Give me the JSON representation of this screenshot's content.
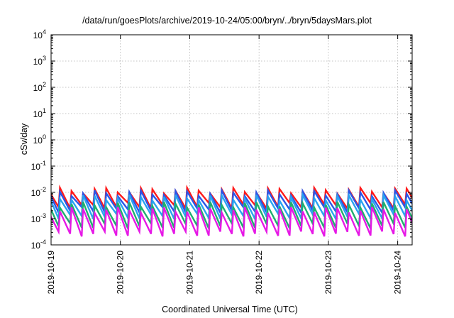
{
  "chart_data": {
    "type": "line",
    "title": "/data/run/goesPlots/archive/2019-10-24/05:00/bryn/../bryn/5daysMars.plot",
    "xlabel": "Coordinated Universal Time (UTC)",
    "ylabel": "cSv/day",
    "x_ticks": [
      "2019-10-19",
      "2019-10-20",
      "2019-10-21",
      "2019-10-22",
      "2019-10-23",
      "2019-10-24"
    ],
    "xlim": [
      "2019-10-19",
      "2019-10-24 05:00"
    ],
    "ylim": [
      0.0001,
      10000
    ],
    "yscale": "log",
    "y_ticks": [
      {
        "base": "10",
        "exp": "-4"
      },
      {
        "base": "10",
        "exp": "-3"
      },
      {
        "base": "10",
        "exp": "-2"
      },
      {
        "base": "10",
        "exp": "-1"
      },
      {
        "base": "10",
        "exp": "0"
      },
      {
        "base": "10",
        "exp": "1"
      },
      {
        "base": "10",
        "exp": "2"
      },
      {
        "base": "10",
        "exp": "3"
      },
      {
        "base": "10",
        "exp": "4"
      }
    ],
    "grid": true,
    "sawtooth_period_hours": 4,
    "series": [
      {
        "color": "#ff1a1a",
        "peak": 0.012,
        "trough": 0.004
      },
      {
        "color": "#2a56e8",
        "peak": 0.0095,
        "trough": 0.0028
      },
      {
        "color": "#29a3f0",
        "peak": 0.0065,
        "trough": 0.0016
      },
      {
        "color": "#1fae6e",
        "peak": 0.0035,
        "trough": 0.0007
      },
      {
        "color": "#e619e6",
        "peak": 0.0022,
        "trough": 0.00035
      }
    ]
  }
}
